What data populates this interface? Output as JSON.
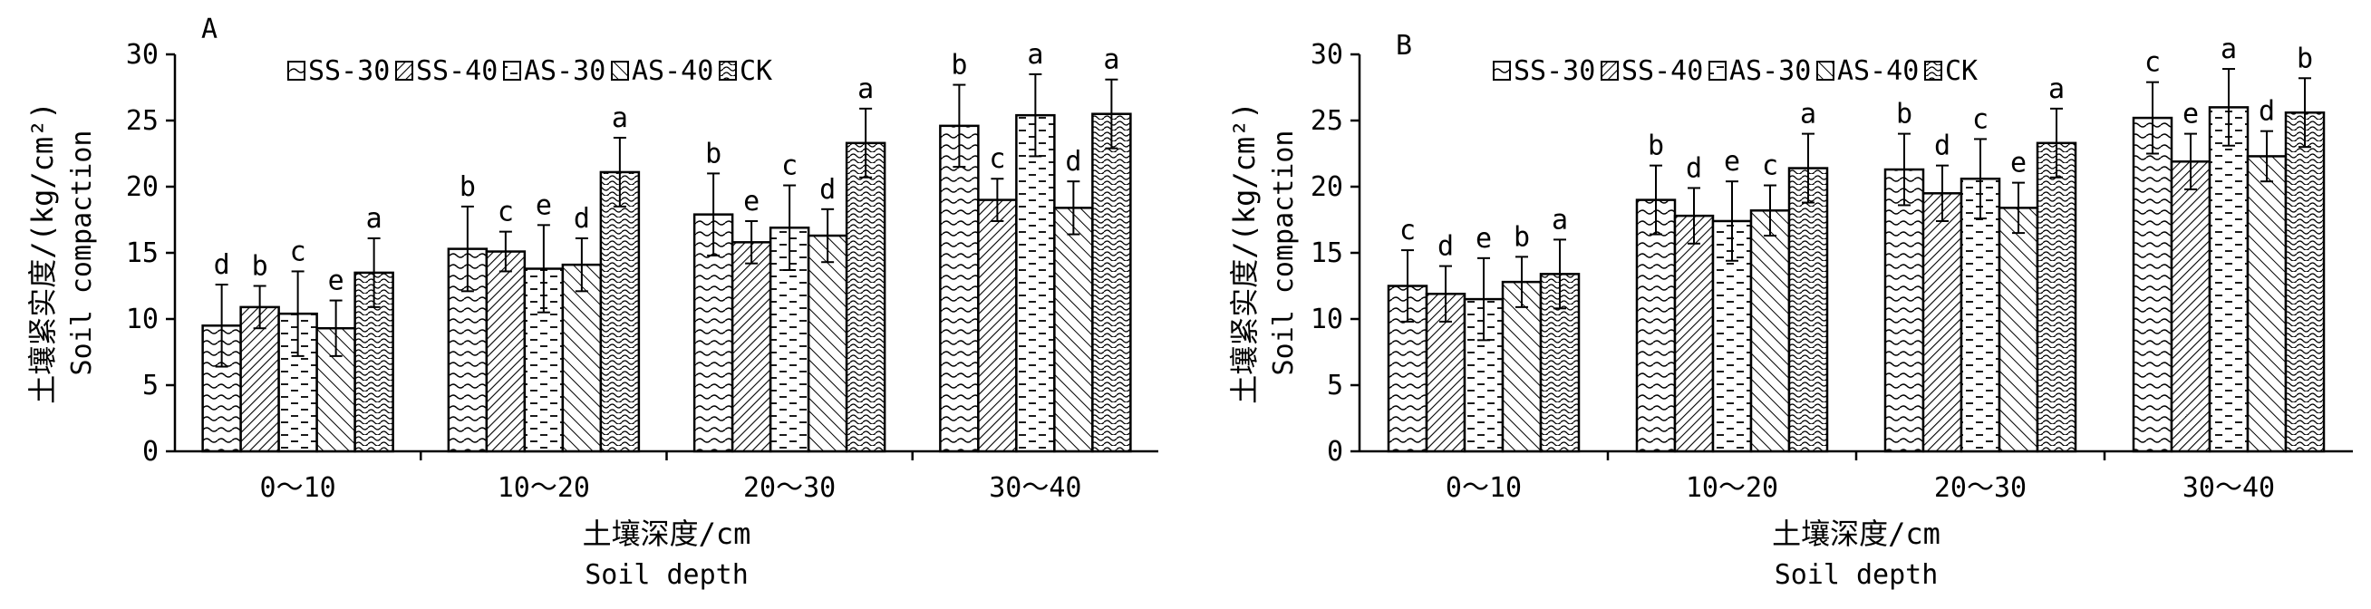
{
  "chart_data": [
    {
      "type": "bar",
      "panel_label": "A",
      "ylabel_cn": "土壤紧实度/(kg/cm²)",
      "ylabel_en": "Soil compaction",
      "xlabel_cn": "土壤深度/cm",
      "xlabel_en": "Soil depth",
      "ylim": [
        0,
        30
      ],
      "yticks": [
        "0",
        "5",
        "10",
        "15",
        "20",
        "25",
        "30"
      ],
      "categories": [
        "0～10",
        "10～20",
        "20～30",
        "30～40"
      ],
      "legend_position": "top",
      "series": [
        {
          "name": "SS-30",
          "pattern": "wave",
          "values": [
            9.5,
            15.3,
            17.9,
            24.6
          ],
          "err": [
            3.1,
            3.2,
            3.1,
            3.1
          ],
          "letters": [
            "d",
            "b",
            "b",
            "b"
          ]
        },
        {
          "name": "SS-40",
          "pattern": "diag-dense",
          "values": [
            10.9,
            15.1,
            15.8,
            19.0
          ],
          "err": [
            1.6,
            1.5,
            1.6,
            1.6
          ],
          "letters": [
            "b",
            "c",
            "e",
            "c"
          ]
        },
        {
          "name": "AS-30",
          "pattern": "dash",
          "values": [
            10.4,
            13.8,
            16.9,
            25.4
          ],
          "err": [
            3.2,
            3.3,
            3.2,
            3.1
          ],
          "letters": [
            "c",
            "e",
            "c",
            "a"
          ]
        },
        {
          "name": "AS-40",
          "pattern": "diag-sparse",
          "values": [
            9.3,
            14.1,
            16.3,
            18.4
          ],
          "err": [
            2.1,
            2.0,
            2.0,
            2.0
          ],
          "letters": [
            "e",
            "d",
            "d",
            "d"
          ]
        },
        {
          "name": "CK",
          "pattern": "squiggle",
          "values": [
            13.5,
            21.1,
            23.3,
            25.5
          ],
          "err": [
            2.6,
            2.6,
            2.6,
            2.6
          ],
          "letters": [
            "a",
            "a",
            "a",
            "a"
          ]
        }
      ]
    },
    {
      "type": "bar",
      "panel_label": "B",
      "ylabel_cn": "土壤紧实度/(kg/cm²)",
      "ylabel_en": "Soil compaction",
      "xlabel_cn": "土壤深度/cm",
      "xlabel_en": "Soil depth",
      "ylim": [
        0,
        30
      ],
      "yticks": [
        "0",
        "5",
        "10",
        "15",
        "20",
        "25",
        "30"
      ],
      "categories": [
        "0～10",
        "10～20",
        "20～30",
        "30～40"
      ],
      "legend_position": "top",
      "series": [
        {
          "name": "SS-30",
          "pattern": "wave",
          "values": [
            12.5,
            19.0,
            21.3,
            25.2
          ],
          "err": [
            2.7,
            2.6,
            2.7,
            2.7
          ],
          "letters": [
            "c",
            "b",
            "b",
            "c"
          ]
        },
        {
          "name": "SS-40",
          "pattern": "diag-dense",
          "values": [
            11.9,
            17.8,
            19.5,
            21.9
          ],
          "err": [
            2.1,
            2.1,
            2.1,
            2.1
          ],
          "letters": [
            "d",
            "d",
            "d",
            "e"
          ]
        },
        {
          "name": "AS-30",
          "pattern": "dash",
          "values": [
            11.5,
            17.4,
            20.6,
            26.0
          ],
          "err": [
            3.1,
            3.0,
            3.0,
            2.9
          ],
          "letters": [
            "e",
            "e",
            "c",
            "a"
          ]
        },
        {
          "name": "AS-40",
          "pattern": "diag-sparse",
          "values": [
            12.8,
            18.2,
            18.4,
            22.3
          ],
          "err": [
            1.9,
            1.9,
            1.9,
            1.9
          ],
          "letters": [
            "b",
            "c",
            "e",
            "d"
          ]
        },
        {
          "name": "CK",
          "pattern": "squiggle",
          "values": [
            13.4,
            21.4,
            23.3,
            25.6
          ],
          "err": [
            2.6,
            2.6,
            2.6,
            2.6
          ],
          "letters": [
            "a",
            "a",
            "a",
            "b"
          ]
        }
      ]
    }
  ]
}
